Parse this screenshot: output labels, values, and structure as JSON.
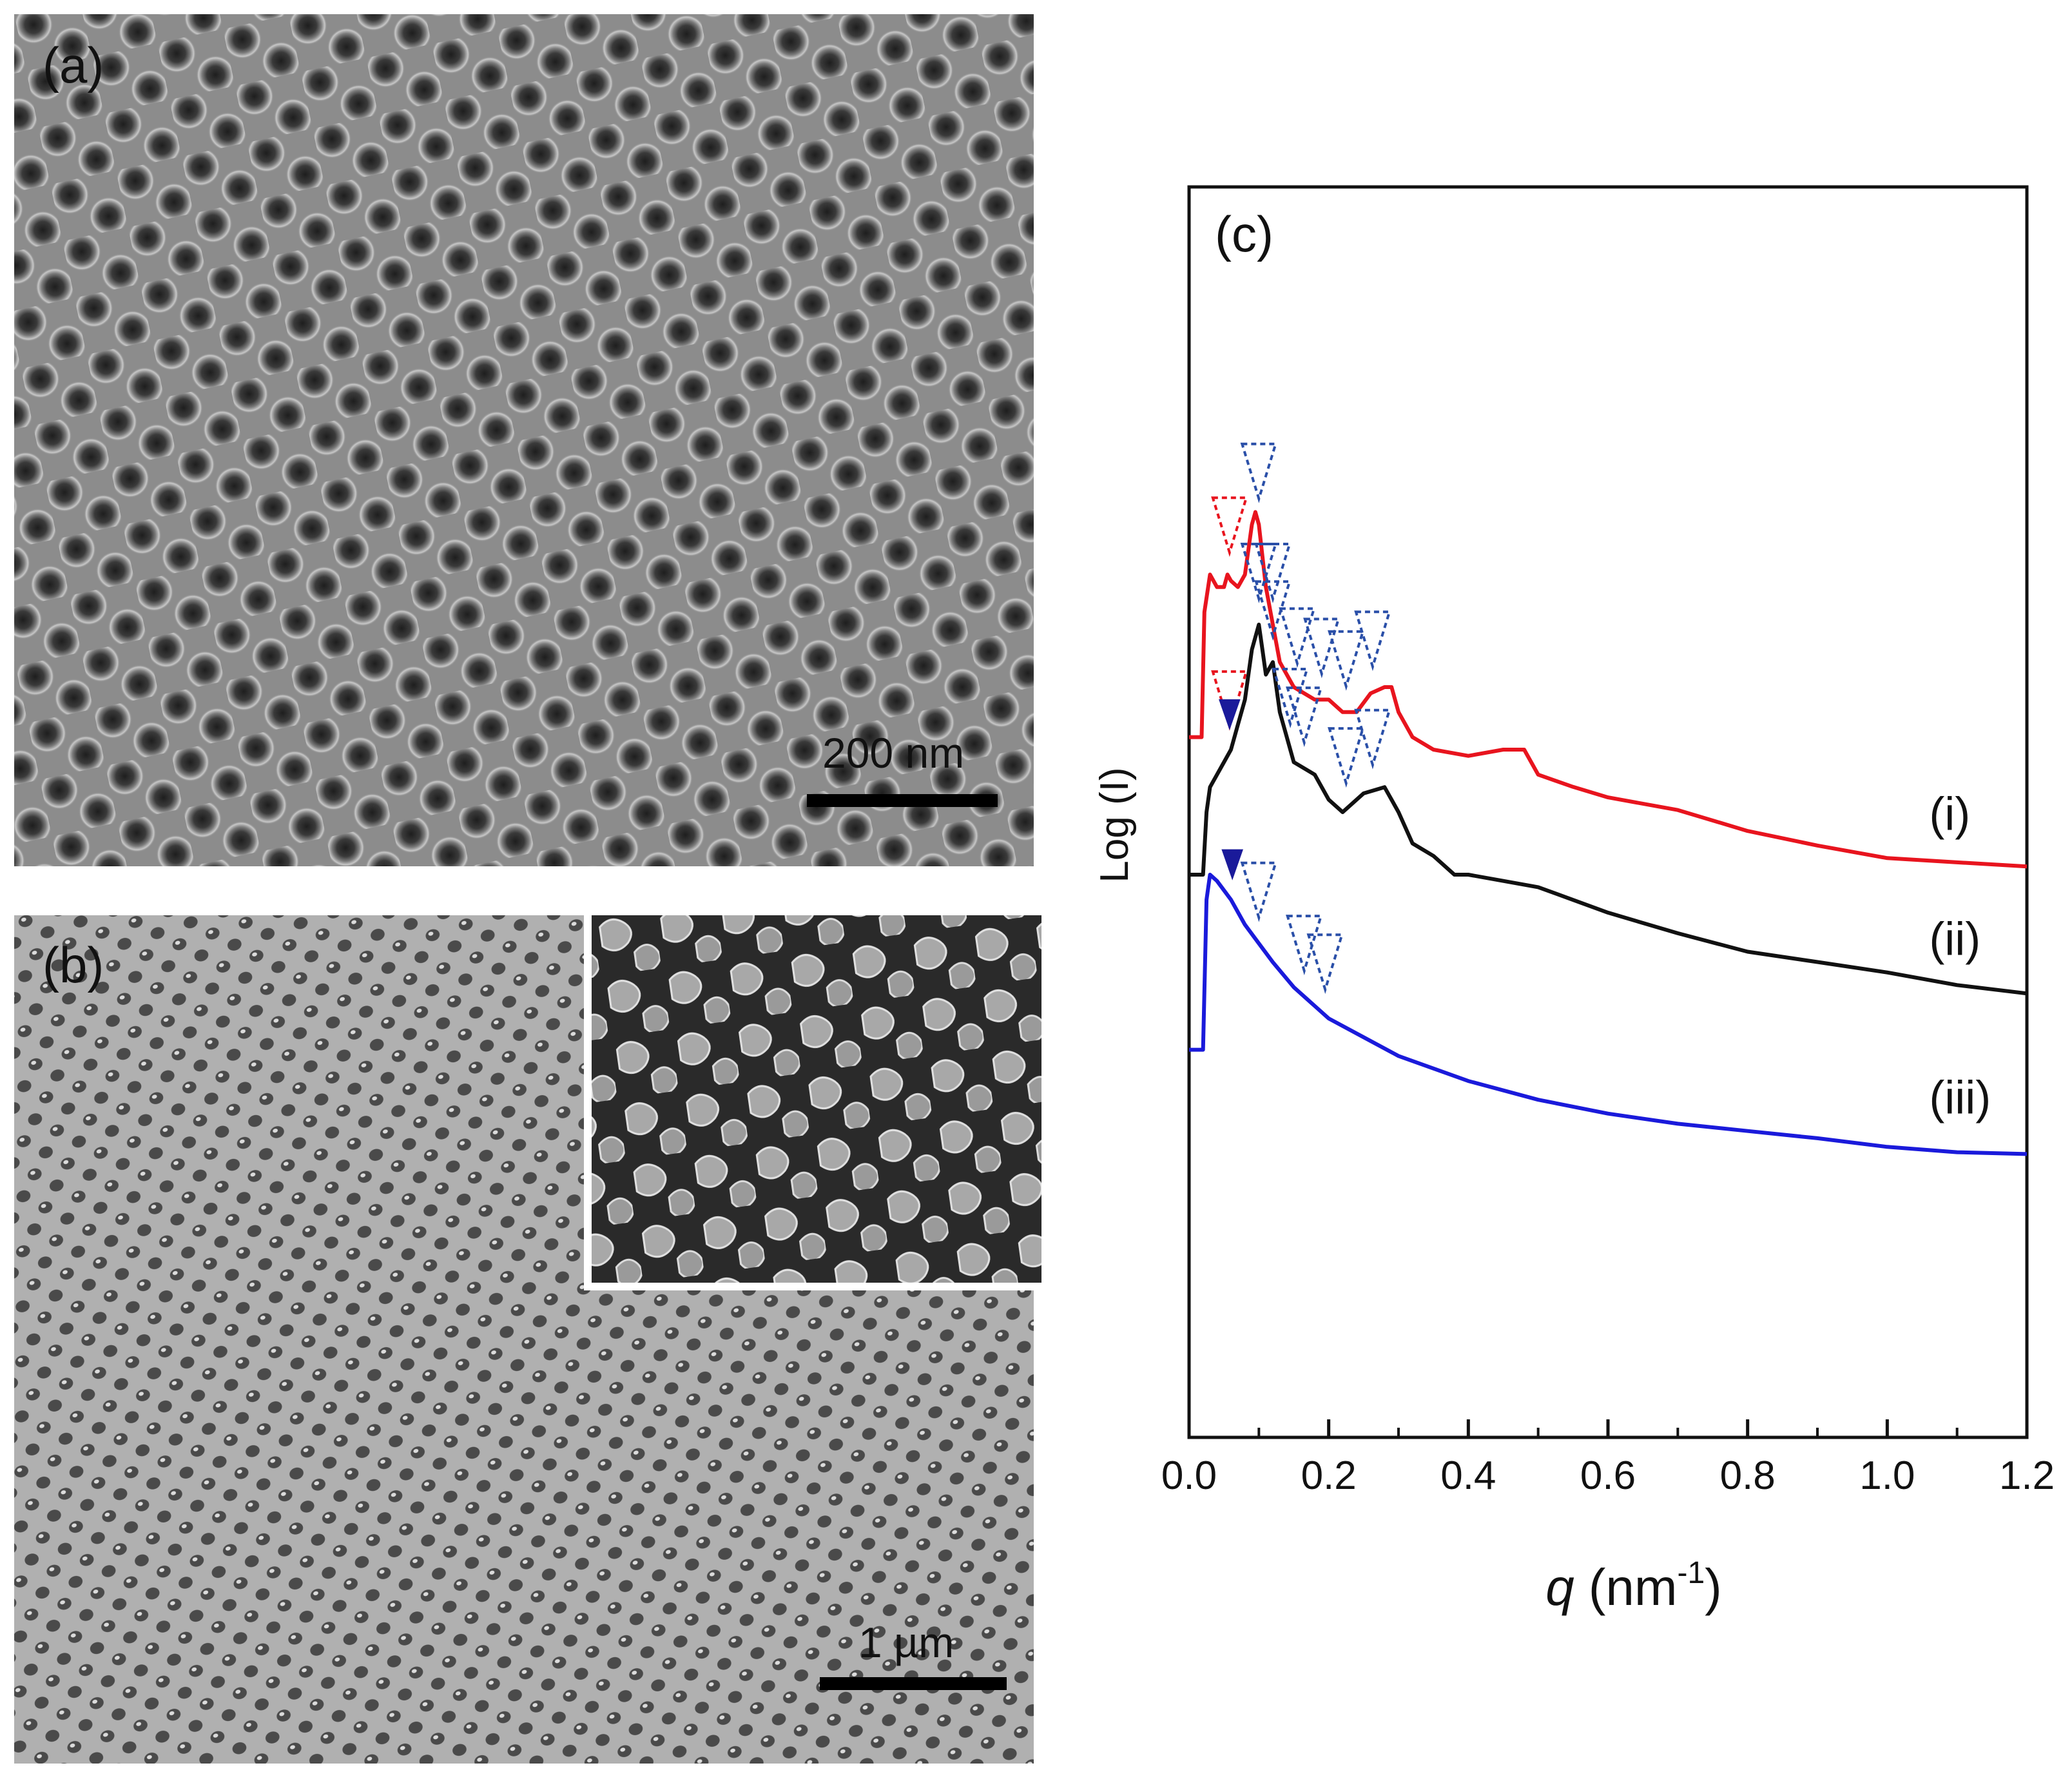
{
  "panels": {
    "a": {
      "label": "(a)",
      "scale_label": "200 nm"
    },
    "b": {
      "label": "(b)",
      "scale_label": "1 µm"
    },
    "c": {
      "label": "(c)"
    }
  },
  "chart_data": {
    "type": "line",
    "title": "(c)",
    "xlabel_main": "q",
    "xlabel_unit": "(nm",
    "xlabel_sup": "-1",
    "xlabel_close": ")",
    "ylabel": "Log (I)",
    "xlim": [
      0.0,
      1.2
    ],
    "ylim": [
      0,
      10
    ],
    "x_ticks": [
      "0.0",
      "0.2",
      "0.4",
      "0.6",
      "0.8",
      "1.0",
      "1.2"
    ],
    "x_tick_values": [
      0.0,
      0.2,
      0.4,
      0.6,
      0.8,
      1.0,
      1.2
    ],
    "series": [
      {
        "name": "(i)",
        "color": "#e8141e",
        "x": [
          0.0,
          0.018,
          0.022,
          0.03,
          0.04,
          0.05,
          0.055,
          0.06,
          0.07,
          0.08,
          0.09,
          0.095,
          0.1,
          0.11,
          0.12,
          0.13,
          0.15,
          0.18,
          0.2,
          0.22,
          0.24,
          0.26,
          0.28,
          0.29,
          0.3,
          0.32,
          0.35,
          0.4,
          0.45,
          0.48,
          0.5,
          0.55,
          0.6,
          0.7,
          0.8,
          0.9,
          1.0,
          1.1,
          1.2
        ],
        "y": [
          5.6,
          5.6,
          6.6,
          6.9,
          6.8,
          6.8,
          6.9,
          6.85,
          6.8,
          6.9,
          7.3,
          7.4,
          7.3,
          6.8,
          6.5,
          6.2,
          6.0,
          5.9,
          5.9,
          5.8,
          5.8,
          5.95,
          6.0,
          6.0,
          5.8,
          5.6,
          5.5,
          5.45,
          5.5,
          5.5,
          5.3,
          5.2,
          5.1,
          5.0,
          4.85,
          4.75,
          4.65,
          4.6,
          4.55
        ]
      },
      {
        "name": "(ii)",
        "color": "#111111",
        "x": [
          0.0,
          0.02,
          0.025,
          0.03,
          0.05,
          0.06,
          0.07,
          0.08,
          0.09,
          0.1,
          0.105,
          0.11,
          0.12,
          0.13,
          0.15,
          0.18,
          0.2,
          0.22,
          0.25,
          0.28,
          0.3,
          0.32,
          0.35,
          0.38,
          0.4,
          0.45,
          0.5,
          0.6,
          0.7,
          0.8,
          0.9,
          1.0,
          1.1,
          1.2
        ],
        "y": [
          4.5,
          4.5,
          5.0,
          5.2,
          5.4,
          5.5,
          5.7,
          5.9,
          6.3,
          6.5,
          6.3,
          6.1,
          6.2,
          5.8,
          5.4,
          5.3,
          5.1,
          5.0,
          5.15,
          5.2,
          5.0,
          4.75,
          4.65,
          4.5,
          4.5,
          4.45,
          4.4,
          4.2,
          4.05,
          3.9,
          3.8,
          3.7,
          3.6,
          3.55
        ]
      },
      {
        "name": "(iii)",
        "color": "#1a1adb",
        "x": [
          0.0,
          0.02,
          0.025,
          0.03,
          0.04,
          0.06,
          0.08,
          0.1,
          0.12,
          0.15,
          0.18,
          0.2,
          0.25,
          0.3,
          0.4,
          0.5,
          0.6,
          0.7,
          0.8,
          0.9,
          1.0,
          1.1,
          1.2
        ],
        "y": [
          3.1,
          3.1,
          4.3,
          4.5,
          4.45,
          4.3,
          4.1,
          3.95,
          3.8,
          3.6,
          3.45,
          3.35,
          3.2,
          3.05,
          2.85,
          2.7,
          2.6,
          2.5,
          2.43,
          2.38,
          2.33,
          2.3,
          2.28
        ]
      }
    ],
    "series_label_positions": [
      0.0,
      0.0,
      0.0
    ],
    "markers": [
      {
        "series": 0,
        "q": 0.058,
        "style": "red-dashed"
      },
      {
        "series": 0,
        "q": 0.1,
        "style": "blue-dashed"
      },
      {
        "series": 0,
        "q": 0.12,
        "style": "blue-dashed"
      },
      {
        "series": 0,
        "q": 0.155,
        "style": "blue-dashed"
      },
      {
        "series": 0,
        "q": 0.19,
        "style": "blue-dashed"
      },
      {
        "series": 0,
        "q": 0.225,
        "style": "blue-dashed"
      },
      {
        "series": 0,
        "q": 0.263,
        "style": "blue-dashed"
      },
      {
        "series": 1,
        "q": 0.058,
        "style": "red-dashed"
      },
      {
        "series": 1,
        "q": 0.1,
        "style": "blue-dashed"
      },
      {
        "series": 1,
        "q": 0.12,
        "style": "blue-dashed"
      },
      {
        "series": 1,
        "q": 0.145,
        "style": "blue-dashed"
      },
      {
        "series": 1,
        "q": 0.165,
        "style": "blue-dashed"
      },
      {
        "series": 1,
        "q": 0.225,
        "style": "blue-dashed"
      },
      {
        "series": 1,
        "q": 0.263,
        "style": "blue-dashed"
      },
      {
        "series": 1,
        "q": 0.058,
        "style": "blue-solid"
      },
      {
        "series": 2,
        "q": 0.062,
        "style": "blue-solid"
      },
      {
        "series": 2,
        "q": 0.1,
        "style": "blue-dashed"
      },
      {
        "series": 2,
        "q": 0.165,
        "style": "blue-dashed"
      },
      {
        "series": 2,
        "q": 0.195,
        "style": "blue-dashed"
      }
    ]
  }
}
